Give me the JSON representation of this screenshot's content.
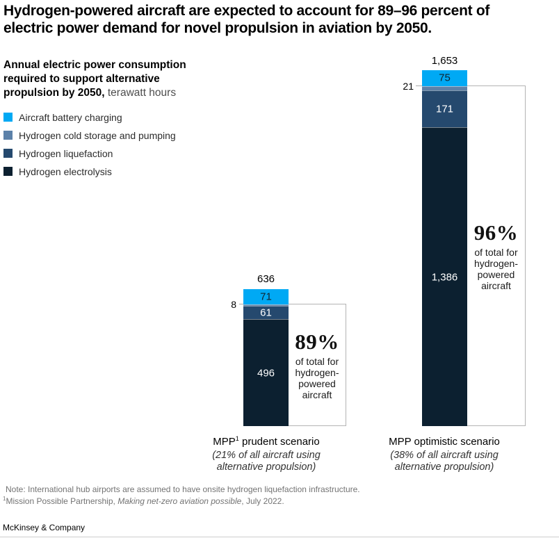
{
  "title": "Hydrogen-powered aircraft are expected to account for 89–96 percent of electric power demand for novel propulsion in aviation by 2050.",
  "subtitle": {
    "bold": "Annual electric power consumption required to support alternative propulsion by 2050,",
    "unit": " terawatt hours"
  },
  "legend": [
    {
      "label": "Aircraft battery charging",
      "color": "#00A9F4"
    },
    {
      "label": "Hydrogen cold storage and pumping",
      "color": "#5C81A9"
    },
    {
      "label": "Hydrogen liquefaction",
      "color": "#25496E"
    },
    {
      "label": "Hydrogen electrolysis",
      "color": "#0C2030"
    }
  ],
  "chart_data": {
    "type": "bar",
    "stacked": true,
    "unit": "terawatt hours",
    "categories": [
      "MPP¹ prudent scenario",
      "MPP optimistic scenario"
    ],
    "category_subtitles": [
      "(21% of all aircraft using alternative propulsion)",
      "(38% of all aircraft using alternative propulsion)"
    ],
    "series": [
      {
        "name": "Aircraft battery charging",
        "values": [
          71,
          75
        ],
        "color": "#00A9F4"
      },
      {
        "name": "Hydrogen cold storage and pumping",
        "values": [
          8,
          21
        ],
        "color": "#5C81A9"
      },
      {
        "name": "Hydrogen liquefaction",
        "values": [
          61,
          171
        ],
        "color": "#25496E"
      },
      {
        "name": "Hydrogen electrolysis",
        "values": [
          496,
          1386
        ],
        "color": "#0C2030"
      }
    ],
    "totals": [
      636,
      1653
    ],
    "annotations": [
      {
        "text": "89% of total for hydrogen-powered aircraft",
        "target": "MPP prudent scenario"
      },
      {
        "text": "96% of total for hydrogen-powered aircraft",
        "target": "MPP optimistic scenario"
      }
    ],
    "legend_position": "top-left",
    "grid": false
  },
  "bars": [
    {
      "total": "636",
      "battery": "71",
      "cold": "8",
      "liq": "61",
      "elec": "496",
      "pct": "89%",
      "caption": "of total for hydrogen-powered aircraft",
      "name_pre": "MPP",
      "name_sup": "1",
      "name_post": " prudent scenario",
      "sub1": "(21% of all aircraft using",
      "sub2": "alternative propulsion)"
    },
    {
      "total": "1,653",
      "battery": "75",
      "cold": "21",
      "liq": "171",
      "elec": "1,386",
      "pct": "96%",
      "caption": "of total for hydrogen-powered aircraft",
      "name_pre": "MPP optimistic scenario",
      "name_sup": "",
      "name_post": "",
      "sub1": "(38% of all aircraft using",
      "sub2": "alternative propulsion)"
    }
  ],
  "footer": {
    "note": "Note: International hub airports are assumed to have onsite hydrogen liquefaction infrastructure.",
    "fn_sup": "1",
    "fn_pre": "Mission Possible Partnership, ",
    "fn_italic": "Making net-zero aviation possible",
    "fn_post": ", July 2022.",
    "brand": "McKinsey & Company"
  },
  "colors": {
    "box_border": "#b3b3b3",
    "bottom_rule": "#cfcfcf",
    "note_gray": "#737373"
  }
}
